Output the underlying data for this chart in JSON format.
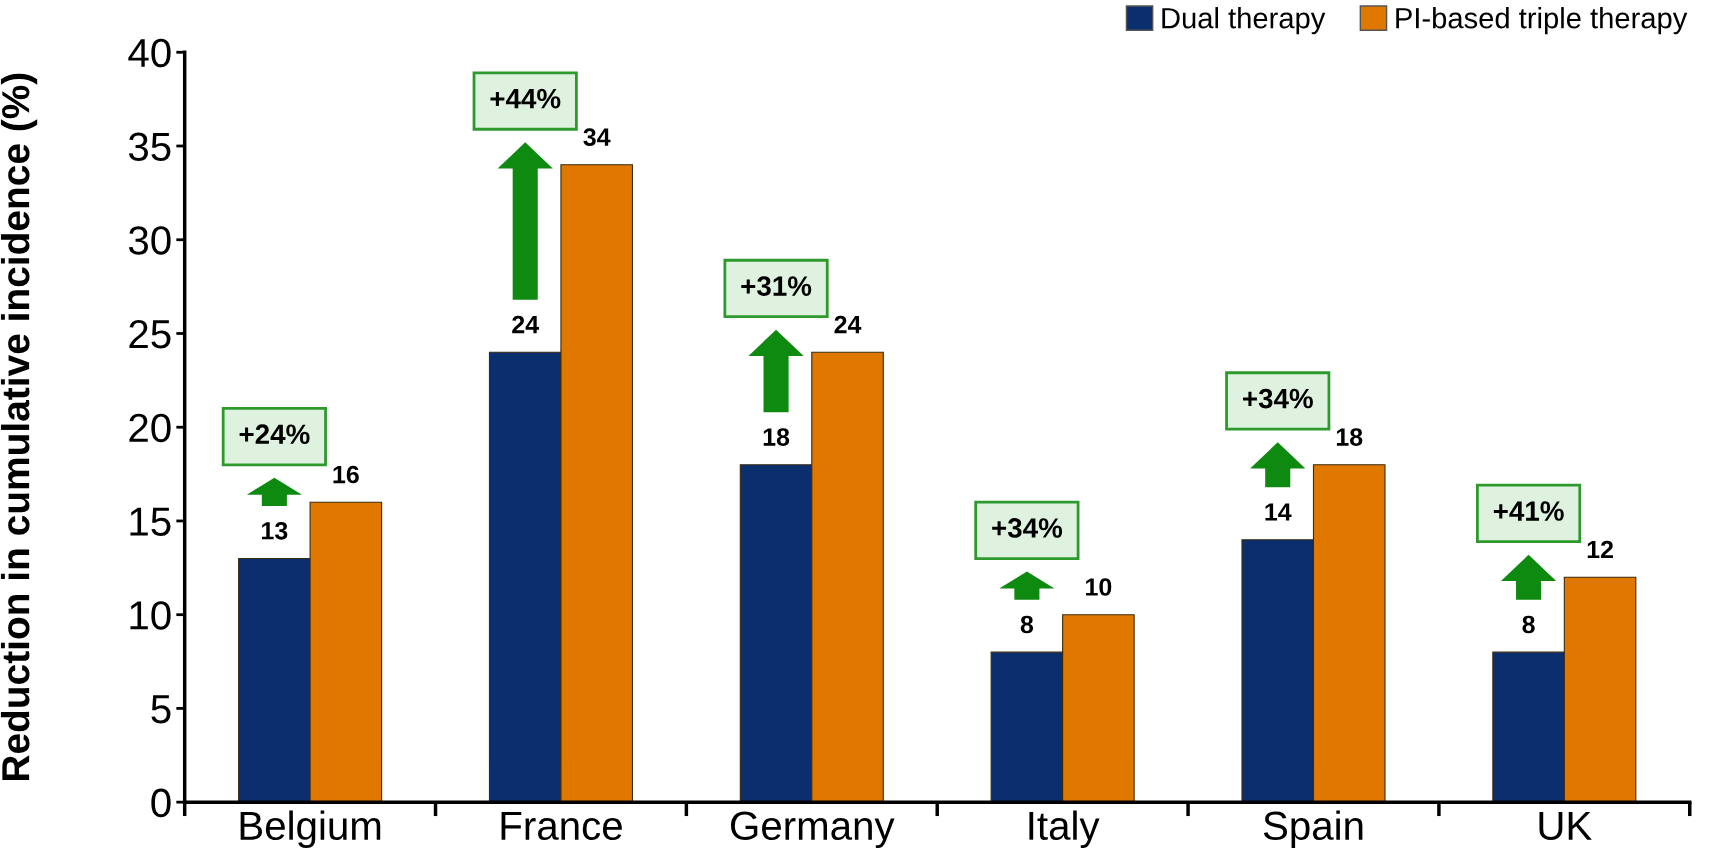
{
  "chart_data": {
    "type": "bar",
    "ylabel": "Reduction in cumulative incidence (%)",
    "categories": [
      "Belgium",
      "France",
      "Germany",
      "Italy",
      "Spain",
      "UK"
    ],
    "series": [
      {
        "name": "Dual therapy",
        "color": "#0b2f6e",
        "values": [
          13,
          24,
          18,
          8,
          14,
          8
        ]
      },
      {
        "name": "PI-based triple therapy",
        "color": "#e07800",
        "values": [
          16,
          34,
          24,
          10,
          18,
          12
        ]
      }
    ],
    "ylim": [
      0,
      40
    ],
    "yticks": [
      0,
      5,
      10,
      15,
      20,
      25,
      30,
      35,
      40
    ],
    "grid": false,
    "legend": "top right",
    "data_labels": true,
    "annotations": [
      "+24%",
      "+44%",
      "+31%",
      "+34%",
      "+34%",
      "+41%"
    ]
  }
}
